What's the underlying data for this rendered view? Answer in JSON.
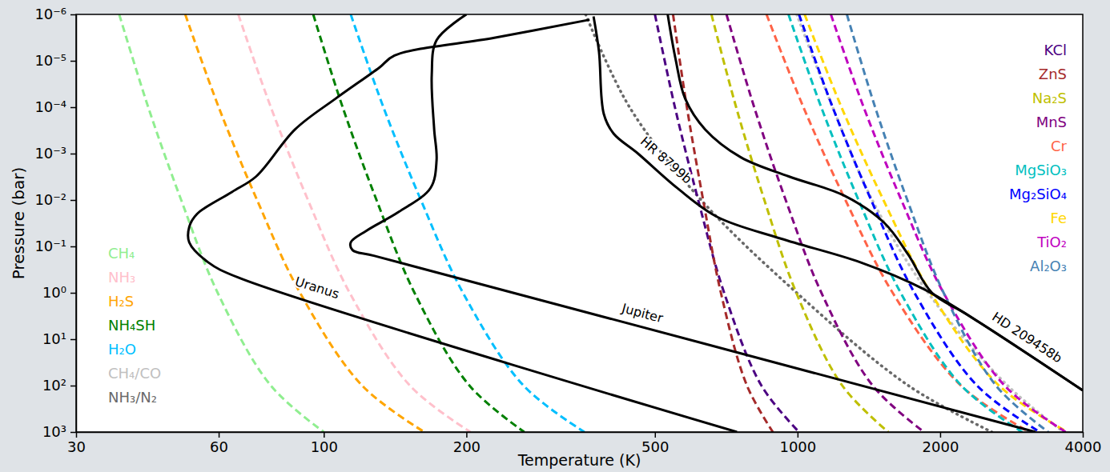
{
  "chart_data": {
    "type": "line",
    "log": true,
    "grid": false,
    "xlabel": "Temperature (K)",
    "ylabel": "Pressure (bar)",
    "xlim": [
      30,
      4000
    ],
    "ylim": [
      1000,
      1e-06
    ],
    "xticks": [
      30,
      60,
      100,
      200,
      500,
      1000,
      2000,
      4000
    ],
    "yticks": [
      {
        "value": 1e-06,
        "label": "10⁻⁶"
      },
      {
        "value": 1e-05,
        "label": "10⁻⁵"
      },
      {
        "value": 0.0001,
        "label": "10⁻⁴"
      },
      {
        "value": 0.001,
        "label": "10⁻³"
      },
      {
        "value": 0.01,
        "label": "10⁻²"
      },
      {
        "value": 0.1,
        "label": "10⁻¹"
      },
      {
        "value": 1,
        "label": "10⁰"
      },
      {
        "value": 10,
        "label": "10¹"
      },
      {
        "value": 100,
        "label": "10²"
      },
      {
        "value": 1000,
        "label": "10³"
      }
    ],
    "series": [
      {
        "name": "CH₄",
        "color": "#90ee90",
        "line_style": "dashed",
        "legend": "lower left",
        "x": [
          37,
          42.6,
          50,
          59.7,
          77.3,
          100
        ],
        "values": [
          1e-06,
          0.0001,
          0.01,
          1,
          100,
          1000
        ]
      },
      {
        "name": "NH₃",
        "color": "#ffc0cb",
        "line_style": "dashed",
        "legend": "lower left",
        "x": [
          66,
          77.3,
          92.6,
          113.4,
          152,
          204
        ],
        "values": [
          1e-06,
          0.0001,
          0.01,
          1,
          100,
          1000
        ]
      },
      {
        "name": "H₂S",
        "color": "#ffa500",
        "line_style": "dashed",
        "legend": "lower left",
        "x": [
          51,
          60,
          72.3,
          89.1,
          120.5,
          163
        ],
        "values": [
          1e-06,
          0.0001,
          0.01,
          1,
          100,
          1000
        ]
      },
      {
        "name": "NH₄SH",
        "color": "#008000",
        "line_style": "dashed",
        "legend": "lower left",
        "x": [
          95,
          109.6,
          129.2,
          155.4,
          203,
          265
        ],
        "values": [
          1e-06,
          0.0001,
          0.01,
          1,
          100,
          1000
        ]
      },
      {
        "name": "H₂O",
        "color": "#00bfff",
        "line_style": "dashed",
        "legend": "lower left",
        "x": [
          114,
          133.6,
          160.3,
          196.7,
          264,
          355
        ],
        "values": [
          1e-06,
          0.0001,
          0.01,
          1,
          100,
          1000
        ]
      },
      {
        "name": "CH₄/CO",
        "color": "#c0c0c0",
        "line_style": "dotted",
        "legend": "lower left",
        "x": [
          996,
          1186,
          1438,
          1886,
          2776,
          3642
        ],
        "values": [
          1e-06,
          0.0001,
          0.01,
          1,
          100,
          1000
        ]
      },
      {
        "name": "NH₃/N₂",
        "color": "#696969",
        "line_style": "dotted",
        "legend": "lower left",
        "x": [
          357,
          442,
          626,
          996,
          1714,
          2571
        ],
        "values": [
          1e-06,
          0.0001,
          0.01,
          1,
          100,
          1000
        ]
      },
      {
        "name": "KCl",
        "color": "#4b0082",
        "line_style": "dashed",
        "legend": "upper right",
        "x": [
          500,
          551,
          617,
          700,
          839,
          1007
        ],
        "values": [
          1e-06,
          0.0001,
          0.01,
          1,
          100,
          1000
        ]
      },
      {
        "name": "ZnS",
        "color": "#a52a2a",
        "line_style": "dashed",
        "legend": "upper right",
        "x": [
          546,
          584,
          632,
          689,
          782,
          887
        ],
        "values": [
          1e-06,
          0.0001,
          0.01,
          1,
          100,
          1000
        ]
      },
      {
        "name": "Na₂S",
        "color": "#bfbf00",
        "line_style": "dashed",
        "legend": "upper right",
        "x": [
          658,
          742,
          851,
          994,
          1243,
          1554
        ],
        "values": [
          1e-06,
          0.0001,
          0.01,
          1,
          100,
          1000
        ]
      },
      {
        "name": "MnS",
        "color": "#800080",
        "line_style": "dashed",
        "legend": "upper right",
        "x": [
          708,
          810,
          944,
          1123,
          1441,
          1849
        ],
        "values": [
          1e-06,
          0.0001,
          0.01,
          1,
          100,
          1000
        ]
      },
      {
        "name": "Cr",
        "color": "#ff6347",
        "line_style": "dashed",
        "legend": "upper right",
        "x": [
          860,
          1029,
          1262,
          1588,
          2212,
          3084
        ],
        "values": [
          1e-06,
          0.0001,
          0.01,
          1,
          100,
          1000
        ]
      },
      {
        "name": "MgSiO₃",
        "color": "#00bfbf",
        "line_style": "dashed",
        "legend": "upper right",
        "x": [
          957,
          1122,
          1345,
          1651,
          2217,
          2979
        ],
        "values": [
          1e-06,
          0.0001,
          0.01,
          1,
          100,
          1000
        ]
      },
      {
        "name": "Mg₂SiO₄",
        "color": "#0000ff",
        "line_style": "dashed",
        "legend": "upper right",
        "x": [
          1007,
          1186,
          1430,
          1765,
          2393,
          3245
        ],
        "values": [
          1e-06,
          0.0001,
          0.01,
          1,
          100,
          1000
        ]
      },
      {
        "name": "Fe",
        "color": "#ffd700",
        "line_style": "dashed",
        "legend": "upper right",
        "x": [
          1035,
          1238,
          1518,
          1911,
          2662,
          3712
        ],
        "values": [
          1e-06,
          0.0001,
          0.01,
          1,
          100,
          1000
        ]
      },
      {
        "name": "TiO₂",
        "color": "#bf00bf",
        "line_style": "dashed",
        "legend": "upper right",
        "x": [
          1176,
          1379,
          1656,
          2033,
          2735,
          3680
        ],
        "values": [
          1e-06,
          0.0001,
          0.01,
          1,
          100,
          1000
        ]
      },
      {
        "name": "Al₂O₃",
        "color": "#4682b4",
        "line_style": "dashed",
        "legend": "upper right",
        "x": [
          1271,
          1458,
          1705,
          2034,
          2623,
          3384
        ],
        "values": [
          1e-06,
          0.0001,
          0.01,
          1,
          100,
          1000
        ]
      },
      {
        "name": "Uranus",
        "color": "#000000",
        "line_style": "solid",
        "x": [
          364,
          229,
          141,
          131,
          106,
          87,
          72,
          64,
          54,
          52,
          52,
          57,
          66,
          745
        ],
        "values": [
          1.3e-06,
          3.2e-06,
          7.7e-06,
          1.4e-05,
          6.5e-05,
          0.0003,
          0.0031,
          0.0067,
          0.02,
          0.038,
          0.082,
          0.22,
          0.47,
          1000
        ]
      },
      {
        "name": "Jupiter",
        "color": "#000000",
        "line_style": "solid",
        "x": [
          200,
          173,
          169,
          171,
          173,
          168,
          144,
          123,
          114,
          115,
          128,
          3179
        ],
        "values": [
          1e-06,
          3.6e-06,
          2e-05,
          0.0003,
          0.0014,
          0.0055,
          0.018,
          0.046,
          0.082,
          0.12,
          0.16,
          1000
        ]
      },
      {
        "name": "HR 8799b",
        "color": "#000000",
        "line_style": "solid",
        "x": [
          371,
          381,
          390,
          409,
          459,
          557,
          676,
          922,
          1357,
          1850,
          2424,
          4000
        ],
        "values": [
          1.1e-06,
          6.4e-06,
          0.00014,
          0.00037,
          0.00097,
          0.0055,
          0.023,
          0.068,
          0.22,
          0.84,
          4.4,
          127
        ]
      },
      {
        "name": "HD 209458b",
        "color": "#000000",
        "line_style": "solid",
        "x": [
          532,
          553,
          579,
          638,
          759,
          958,
          1256,
          1524,
          1712,
          1922,
          2289,
          4000
        ],
        "values": [
          1e-06,
          9.4e-06,
          6.5e-05,
          0.0003,
          0.0012,
          0.0031,
          0.0081,
          0.031,
          0.15,
          1.0,
          3.0,
          127
        ]
      }
    ]
  }
}
